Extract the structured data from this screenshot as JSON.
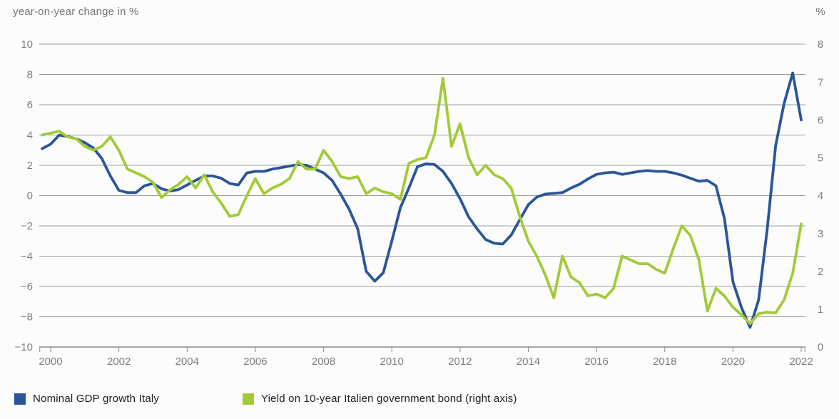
{
  "header": {
    "left_axis_title": "year-on-year change in %",
    "right_axis_title": "%"
  },
  "legend": {
    "items": [
      {
        "label": "Nominal GDP growth Italy",
        "color": "#2a5598"
      },
      {
        "label": "Yield on 10-year Italien government bond (right axis)",
        "color": "#a2ca38"
      }
    ]
  },
  "chart_data": {
    "type": "line",
    "title": "",
    "xlabel": "",
    "grid": true,
    "x_start": 1999.75,
    "x_step": 0.25,
    "x_axis": {
      "tick_years": [
        2000,
        2002,
        2004,
        2006,
        2008,
        2010,
        2012,
        2014,
        2016,
        2018,
        2020,
        2022
      ]
    },
    "left_axis": {
      "title": "year-on-year change in %",
      "min": -10,
      "max": 10,
      "ticks": [
        10,
        8,
        6,
        4,
        2,
        0,
        -2,
        -4,
        -6,
        -8,
        -10
      ]
    },
    "right_axis": {
      "title": "%",
      "min": 0,
      "max": 8,
      "ticks": [
        8,
        7,
        6,
        5,
        4,
        3,
        2,
        1,
        0
      ]
    },
    "series": [
      {
        "name": "Nominal GDP growth Italy",
        "axis": "left",
        "color": "#2a5598",
        "values": [
          3.1,
          3.4,
          4.0,
          3.9,
          3.75,
          3.5,
          3.15,
          2.45,
          1.3,
          0.35,
          0.2,
          0.2,
          0.65,
          0.8,
          0.45,
          0.3,
          0.4,
          0.7,
          1.0,
          1.3,
          1.3,
          1.15,
          0.8,
          0.7,
          1.5,
          1.6,
          1.6,
          1.75,
          1.85,
          1.95,
          2.05,
          2.0,
          1.75,
          1.5,
          1.0,
          0.1,
          -0.9,
          -2.2,
          -5.0,
          -5.65,
          -5.1,
          -3.0,
          -0.8,
          0.5,
          1.9,
          2.1,
          2.05,
          1.6,
          0.8,
          -0.2,
          -1.4,
          -2.2,
          -2.9,
          -3.15,
          -3.2,
          -2.6,
          -1.6,
          -0.6,
          -0.1,
          0.1,
          0.15,
          0.2,
          0.5,
          0.75,
          1.1,
          1.4,
          1.5,
          1.55,
          1.4,
          1.5,
          1.6,
          1.65,
          1.6,
          1.6,
          1.5,
          1.35,
          1.15,
          0.95,
          1.0,
          0.65,
          -1.5,
          -5.7,
          -7.4,
          -8.7,
          -6.9,
          -2.3,
          3.3,
          6.1,
          8.1,
          5.0
        ]
      },
      {
        "name": "Yield on 10-year Italien government bond (right axis)",
        "axis": "right",
        "color": "#a2ca38",
        "values": [
          5.6,
          5.65,
          5.7,
          5.55,
          5.5,
          5.3,
          5.2,
          5.3,
          5.55,
          5.2,
          4.7,
          4.6,
          4.5,
          4.35,
          3.95,
          4.15,
          4.3,
          4.5,
          4.2,
          4.55,
          4.1,
          3.8,
          3.45,
          3.5,
          4.0,
          4.45,
          4.05,
          4.2,
          4.3,
          4.45,
          4.9,
          4.7,
          4.7,
          5.2,
          4.9,
          4.5,
          4.45,
          4.5,
          4.05,
          4.2,
          4.1,
          4.05,
          3.9,
          4.85,
          4.95,
          5.0,
          5.6,
          7.1,
          5.3,
          5.9,
          5.0,
          4.55,
          4.8,
          4.55,
          4.45,
          4.2,
          3.45,
          2.8,
          2.4,
          1.9,
          1.3,
          2.4,
          1.85,
          1.7,
          1.35,
          1.4,
          1.3,
          1.55,
          2.4,
          2.3,
          2.2,
          2.2,
          2.05,
          1.95,
          2.6,
          3.2,
          2.95,
          2.3,
          0.95,
          1.55,
          1.35,
          1.05,
          0.85,
          0.62,
          0.88,
          0.92,
          0.9,
          1.25,
          1.95,
          3.25
        ]
      }
    ]
  }
}
